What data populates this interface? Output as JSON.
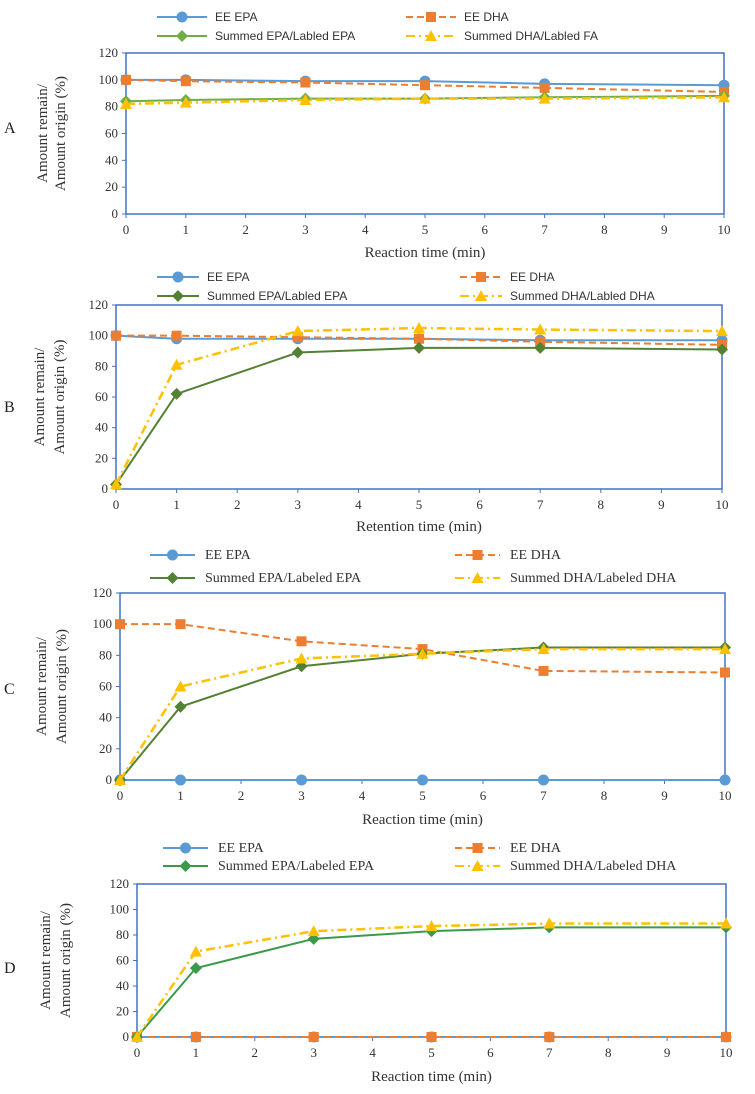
{
  "chart_data": [
    {
      "panel_label": "A",
      "type": "line",
      "x": [
        0,
        1,
        3,
        5,
        7,
        10
      ],
      "xticks": [
        0,
        1,
        2,
        3,
        4,
        5,
        6,
        7,
        8,
        9,
        10
      ],
      "yticks": [
        0,
        20,
        40,
        60,
        80,
        100,
        120
      ],
      "xlim": [
        0,
        10
      ],
      "ylim": [
        0,
        120
      ],
      "xlabel": "Reaction time (min)",
      "ylabel_line1": "Amount remain/",
      "ylabel_line2": "Amount origin (%)",
      "series": [
        {
          "name": "EE EPA",
          "color": "#5B9BD5",
          "dash": "solid",
          "marker": "circle",
          "values": [
            100,
            100,
            99,
            99,
            97,
            96
          ]
        },
        {
          "name": "EE DHA",
          "color": "#ED7D31",
          "dash": "dashed",
          "marker": "square",
          "values": [
            100,
            99,
            98,
            96,
            94,
            91
          ]
        },
        {
          "name": "Summed EPA/Labled EPA",
          "color": "#70AD47",
          "dash": "solid",
          "marker": "diamond",
          "values": [
            84,
            85,
            86,
            86,
            87,
            88
          ]
        },
        {
          "name": "Summed DHA/Labled FA",
          "color": "#FFC000",
          "dash": "dashdot",
          "marker": "triangle",
          "values": [
            82,
            83,
            85,
            86,
            86,
            87
          ]
        }
      ]
    },
    {
      "panel_label": "B",
      "type": "line",
      "x": [
        0,
        1,
        3,
        5,
        7,
        10
      ],
      "xticks": [
        0,
        1,
        2,
        3,
        4,
        5,
        6,
        7,
        8,
        9,
        10
      ],
      "yticks": [
        0,
        20,
        40,
        60,
        80,
        100,
        120
      ],
      "xlim": [
        0,
        10
      ],
      "ylim": [
        0,
        120
      ],
      "xlabel": "Retention time (min)",
      "ylabel_line1": "Amount remain/",
      "ylabel_line2": "Amount origin (%)",
      "series": [
        {
          "name": "EE EPA",
          "color": "#5B9BD5",
          "dash": "solid",
          "marker": "circle",
          "values": [
            100,
            98,
            98,
            98,
            97,
            97
          ]
        },
        {
          "name": "EE DHA",
          "color": "#ED7D31",
          "dash": "dashed",
          "marker": "square",
          "values": [
            100,
            100,
            99,
            98,
            96,
            94
          ]
        },
        {
          "name": "Summed EPA/Labled EPA",
          "color": "#548235",
          "dash": "solid",
          "marker": "diamond",
          "values": [
            3,
            62,
            89,
            92,
            92,
            91
          ]
        },
        {
          "name": "Summed DHA/Labled DHA",
          "color": "#FFC000",
          "dash": "dashdot",
          "marker": "triangle",
          "values": [
            3,
            81,
            103,
            105,
            104,
            103
          ]
        }
      ]
    },
    {
      "panel_label": "C",
      "type": "line",
      "x": [
        0,
        1,
        3,
        5,
        7,
        10
      ],
      "xticks": [
        0,
        1,
        2,
        3,
        4,
        5,
        6,
        7,
        8,
        9,
        10
      ],
      "yticks": [
        0,
        20,
        40,
        60,
        80,
        100,
        120
      ],
      "xlim": [
        0,
        10
      ],
      "ylim": [
        0,
        120
      ],
      "xlabel": "Reaction time (min)",
      "ylabel_line1": "Amount remain/",
      "ylabel_line2": "Amount origin (%)",
      "series": [
        {
          "name": "EE EPA",
          "color": "#5B9BD5",
          "dash": "solid",
          "marker": "circle",
          "values": [
            0,
            0,
            0,
            0,
            0,
            0
          ]
        },
        {
          "name": "EE DHA",
          "color": "#ED7D31",
          "dash": "dashed",
          "marker": "square",
          "values": [
            100,
            100,
            89,
            84,
            70,
            69
          ]
        },
        {
          "name": "Summed EPA/Labeled EPA",
          "color": "#548235",
          "dash": "solid",
          "marker": "diamond",
          "values": [
            0,
            47,
            73,
            81,
            85,
            85
          ]
        },
        {
          "name": "Summed DHA/Labeled DHA",
          "color": "#FFC000",
          "dash": "dashdot",
          "marker": "triangle",
          "values": [
            0,
            60,
            78,
            81,
            84,
            84
          ]
        }
      ]
    },
    {
      "panel_label": "D",
      "type": "line",
      "x": [
        0,
        1,
        3,
        5,
        7,
        10
      ],
      "xticks": [
        0,
        1,
        2,
        3,
        4,
        5,
        6,
        7,
        8,
        9,
        10
      ],
      "yticks": [
        0,
        20,
        40,
        60,
        80,
        100,
        120
      ],
      "xlim": [
        0,
        10
      ],
      "ylim": [
        0,
        120
      ],
      "xlabel": "Reaction time (min)",
      "ylabel_line1": "Amount remain/",
      "ylabel_line2": "Amount origin (%)",
      "series": [
        {
          "name": "EE EPA",
          "color": "#5B9BD5",
          "dash": "solid",
          "marker": "circle",
          "values": [
            0,
            0,
            0,
            0,
            0,
            0
          ]
        },
        {
          "name": "EE DHA",
          "color": "#ED7D31",
          "dash": "dashed",
          "marker": "square",
          "values": [
            0,
            0,
            0,
            0,
            0,
            0
          ]
        },
        {
          "name": "Summed EPA/Labeled EPA",
          "color": "#3A9A4A",
          "dash": "solid",
          "marker": "diamond",
          "values": [
            0,
            54,
            77,
            83,
            86,
            86
          ]
        },
        {
          "name": "Summed DHA/Labeled DHA",
          "color": "#FFC000",
          "dash": "dashdot",
          "marker": "triangle",
          "values": [
            0,
            67,
            83,
            87,
            89,
            89
          ]
        }
      ]
    }
  ]
}
